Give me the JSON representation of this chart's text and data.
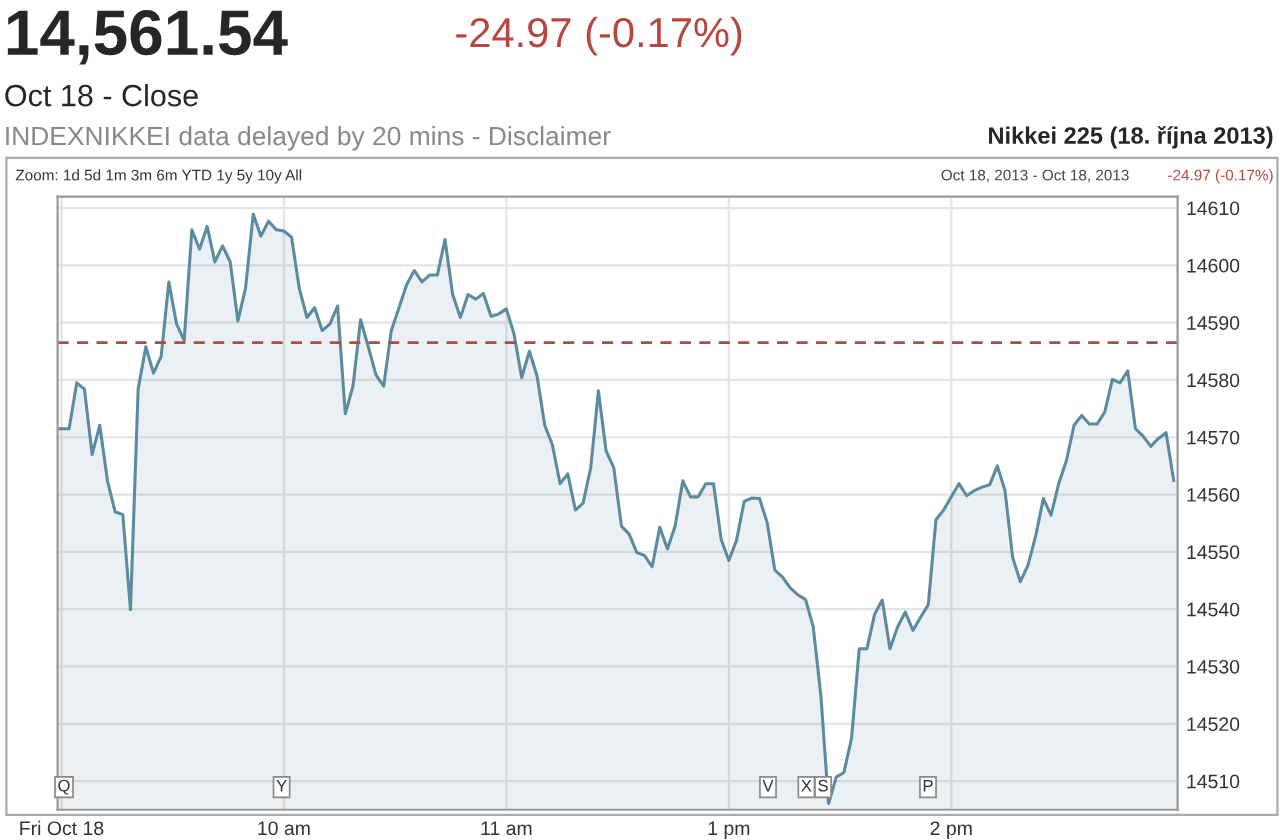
{
  "chart_data": {
    "type": "area",
    "title": "14,561.54",
    "subtitle": "Oct 18 - Close",
    "annotations": [
      "-24.97 (-0.17%)",
      "INDEXNIKKEI data delayed by 20 mins - Disclaimer",
      "Nikkei 225 (18. října 2013)",
      "Zoom: 1d 5d 1m 3m 6m YTD 1y 5y 10y All",
      "Oct 18, 2013 - Oct 18, 2013",
      "-24.97 (-0.17%)",
      "Q",
      "Y",
      "V",
      "X",
      "S",
      "P"
    ],
    "categories": [
      "Fri Oct 18",
      null,
      null,
      null,
      null,
      null,
      null,
      null,
      null,
      null,
      null,
      null,
      null,
      null,
      null,
      null,
      null,
      null,
      null,
      null,
      null,
      null,
      null,
      null,
      null,
      null,
      null,
      null,
      null,
      "10 am",
      null,
      null,
      null,
      null,
      null,
      null,
      null,
      null,
      null,
      null,
      null,
      null,
      null,
      null,
      null,
      null,
      null,
      null,
      null,
      null,
      null,
      null,
      null,
      null,
      null,
      null,
      null,
      null,
      "11 am",
      null,
      null,
      null,
      null,
      null,
      null,
      null,
      null,
      null,
      null,
      null,
      null,
      null,
      null,
      null,
      null,
      null,
      null,
      null,
      null,
      null,
      null,
      null,
      null,
      null,
      null,
      null,
      null,
      "1 pm",
      null,
      null,
      null,
      null,
      null,
      null,
      null,
      null,
      null,
      null,
      null,
      null,
      null,
      null,
      null,
      null,
      null,
      null,
      null,
      null,
      null,
      null,
      null,
      null,
      null,
      null,
      null,
      null,
      "2 pm",
      null,
      null,
      null,
      null,
      null,
      null,
      null,
      null,
      null,
      null,
      null,
      null,
      null,
      null,
      null,
      null,
      null,
      null,
      null,
      null,
      null,
      null,
      null,
      null,
      null,
      null,
      null,
      null,
      null
    ],
    "ylim": [
      14505,
      14612
    ],
    "yticks": [
      14510,
      14520,
      14530,
      14540,
      14550,
      14560,
      14570,
      14580,
      14590,
      14600,
      14610
    ],
    "grid": true,
    "ref_lines": [
      {
        "axis": "y",
        "value": 14586.5,
        "color": "#a0524a",
        "line_style": "dashed"
      }
    ],
    "series": [
      {
        "color": "#5b8ba0",
        "values": [
          14571.5,
          14571.5,
          14579.5,
          14578.4,
          14567.0,
          14572.1,
          14562.4,
          14557.0,
          14556.5,
          14539.9,
          14578.4,
          14585.8,
          14581.2,
          14584.1,
          14597.1,
          14589.8,
          14586.9,
          14606.2,
          14602.8,
          14606.8,
          14600.6,
          14603.4,
          14600.6,
          14590.3,
          14596.0,
          14608.9,
          14605.1,
          14607.7,
          14606.2,
          14606.0,
          14604.9,
          14596.0,
          14590.9,
          14592.6,
          14588.6,
          14589.8,
          14592.9,
          14574.1,
          14578.9,
          14590.5,
          14585.8,
          14580.9,
          14578.9,
          14588.6,
          14592.6,
          14596.6,
          14599.1,
          14597.1,
          14598.3,
          14598.3,
          14604.5,
          14594.9,
          14590.9,
          14594.9,
          14594.1,
          14595.1,
          14591.1,
          14591.5,
          14592.4,
          14588.0,
          14580.4,
          14585.0,
          14580.7,
          14572.1,
          14568.7,
          14561.9,
          14563.6,
          14557.3,
          14558.5,
          14564.7,
          14578.1,
          14567.6,
          14564.7,
          14554.5,
          14553.1,
          14549.9,
          14549.4,
          14547.4,
          14554.3,
          14550.5,
          14554.5,
          14562.4,
          14559.6,
          14559.6,
          14561.9,
          14561.9,
          14552.2,
          14548.5,
          14552.0,
          14558.8,
          14559.4,
          14559.3,
          14555.1,
          14546.8,
          14545.6,
          14543.7,
          14542.5,
          14541.7,
          14536.9,
          14524.9,
          14506.1,
          14510.7,
          14511.5,
          14517.5,
          14533.1,
          14533.1,
          14539.1,
          14541.6,
          14533.1,
          14536.9,
          14539.5,
          14536.3,
          14538.6,
          14540.8,
          14555.6,
          14557.3,
          14559.6,
          14561.9,
          14559.8,
          14560.7,
          14561.3,
          14561.7,
          14565.0,
          14560.7,
          14549.0,
          14544.8,
          14547.7,
          14552.8,
          14559.3,
          14556.4,
          14561.9,
          14565.9,
          14572.1,
          14573.8,
          14572.3,
          14572.3,
          14574.4,
          14580.1,
          14579.5,
          14581.6,
          14571.5,
          14570.2,
          14568.4,
          14569.8,
          14570.8,
          14562.4
        ]
      }
    ]
  }
}
